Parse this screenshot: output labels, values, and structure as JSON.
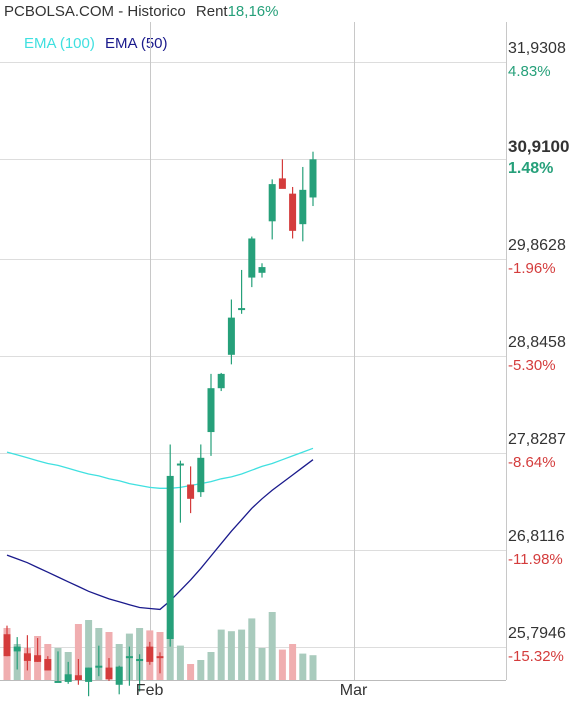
{
  "header": {
    "site": "PCBOLSA.COM",
    "separator": " - ",
    "section": "Historico",
    "rent_label": "Rent",
    "rent_value": "18,16%"
  },
  "colors": {
    "up": "#26a07a",
    "down": "#d43c3c",
    "vol_up": "#a9cbbd",
    "vol_down": "#f0aeb0",
    "ema100": "#40e0e0",
    "ema50": "#1a1a8c",
    "grid": "#dddddd"
  },
  "chart_data": {
    "type": "candlestick",
    "legend": [
      {
        "name": "EMA (100)",
        "color": "#40e0e0"
      },
      {
        "name": "EMA (50)",
        "color": "#1a1a8c"
      }
    ],
    "ylim": [
      25.45,
      32.35
    ],
    "price_levels": [
      {
        "price": "31,9308",
        "pct": "4.83%",
        "dir": "up",
        "value": 31.9308
      },
      {
        "price": "29,8628",
        "pct": "-1.96%",
        "dir": "down",
        "value": 29.8628
      },
      {
        "price": "28,8458",
        "pct": "-5.30%",
        "dir": "down",
        "value": 28.8458
      },
      {
        "price": "27,8287",
        "pct": "-8.64%",
        "dir": "down",
        "value": 27.8287
      },
      {
        "price": "26,8116",
        "pct": "-11.98%",
        "dir": "down",
        "value": 26.8116
      },
      {
        "price": "25,7946",
        "pct": "-15.32%",
        "dir": "down",
        "value": 25.7946
      }
    ],
    "current": {
      "price": "30,9100",
      "pct": "1.48%",
      "value": 30.91
    },
    "x_labels": [
      {
        "label": "Feb",
        "index": 14
      },
      {
        "label": "Mar",
        "index": 34
      }
    ],
    "candles": [
      {
        "o": 25.93,
        "h": 26.02,
        "l": 25.7,
        "c": 25.7
      },
      {
        "o": 25.75,
        "h": 25.9,
        "l": 25.56,
        "c": 25.8
      },
      {
        "o": 25.73,
        "h": 25.92,
        "l": 25.55,
        "c": 25.65
      },
      {
        "o": 25.71,
        "h": 25.89,
        "l": 25.64,
        "c": 25.64
      },
      {
        "o": 25.67,
        "h": 25.7,
        "l": 25.55,
        "c": 25.55
      },
      {
        "o": 25.44,
        "h": 25.75,
        "l": 25.44,
        "c": 25.44
      },
      {
        "o": 25.43,
        "h": 25.64,
        "l": 25.41,
        "c": 25.51
      },
      {
        "o": 25.5,
        "h": 25.67,
        "l": 25.4,
        "c": 25.45
      },
      {
        "o": 25.43,
        "h": 25.58,
        "l": 25.28,
        "c": 25.58
      },
      {
        "o": 25.58,
        "h": 25.81,
        "l": 25.49,
        "c": 25.6
      },
      {
        "o": 25.58,
        "h": 25.68,
        "l": 25.44,
        "c": 25.46
      },
      {
        "o": 25.4,
        "h": 25.6,
        "l": 25.3,
        "c": 25.59
      },
      {
        "o": 25.7,
        "h": 25.8,
        "l": 25.39,
        "c": 25.7
      },
      {
        "o": 25.67,
        "h": 25.72,
        "l": 25.33,
        "c": 25.67
      },
      {
        "o": 25.8,
        "h": 25.85,
        "l": 25.61,
        "c": 25.64
      },
      {
        "o": 25.7,
        "h": 25.74,
        "l": 25.52,
        "c": 25.69
      },
      {
        "o": 25.88,
        "h": 27.92,
        "l": 25.8,
        "c": 27.59
      },
      {
        "o": 27.7,
        "h": 27.75,
        "l": 27.1,
        "c": 27.72
      },
      {
        "o": 27.5,
        "h": 27.69,
        "l": 27.2,
        "c": 27.35
      },
      {
        "o": 27.42,
        "h": 27.92,
        "l": 27.37,
        "c": 27.78
      },
      {
        "o": 28.05,
        "h": 28.66,
        "l": 27.8,
        "c": 28.51
      },
      {
        "o": 28.51,
        "h": 28.67,
        "l": 28.48,
        "c": 28.66
      },
      {
        "o": 28.86,
        "h": 29.44,
        "l": 28.76,
        "c": 29.25
      },
      {
        "o": 29.35,
        "h": 29.75,
        "l": 29.29,
        "c": 29.35
      },
      {
        "o": 29.67,
        "h": 30.1,
        "l": 29.57,
        "c": 30.08
      },
      {
        "o": 29.72,
        "h": 29.82,
        "l": 29.67,
        "c": 29.78
      },
      {
        "o": 30.26,
        "h": 30.7,
        "l": 30.07,
        "c": 30.65
      },
      {
        "o": 30.71,
        "h": 30.91,
        "l": 30.64,
        "c": 30.6
      },
      {
        "o": 30.55,
        "h": 30.62,
        "l": 30.08,
        "c": 30.16
      },
      {
        "o": 30.23,
        "h": 30.83,
        "l": 30.05,
        "c": 30.59
      },
      {
        "o": 30.51,
        "h": 30.99,
        "l": 30.42,
        "c": 30.91
      }
    ],
    "volume": {
      "max": 100,
      "values": [
        65,
        45,
        40,
        55,
        45,
        40,
        35,
        70,
        75,
        65,
        60,
        45,
        58,
        65,
        62,
        60,
        63,
        43,
        20,
        25,
        35,
        63,
        61,
        63,
        77,
        40,
        85,
        38,
        45,
        33,
        31
      ]
    },
    "ema100": [
      27.84,
      27.81,
      27.78,
      27.75,
      27.72,
      27.7,
      27.67,
      27.64,
      27.61,
      27.59,
      27.56,
      27.54,
      27.51,
      27.49,
      27.47,
      27.46,
      27.46,
      27.47,
      27.49,
      27.51,
      27.53,
      27.56,
      27.58,
      27.61,
      27.65,
      27.69,
      27.72,
      27.76,
      27.8,
      27.84,
      27.88
    ],
    "ema50": [
      26.76,
      26.72,
      26.68,
      26.63,
      26.58,
      26.53,
      26.48,
      26.43,
      26.38,
      26.34,
      26.3,
      26.27,
      26.24,
      26.21,
      26.2,
      26.19,
      26.28,
      26.39,
      26.5,
      26.62,
      26.75,
      26.88,
      27.01,
      27.13,
      27.25,
      27.35,
      27.44,
      27.52,
      27.6,
      27.68,
      27.76
    ]
  }
}
